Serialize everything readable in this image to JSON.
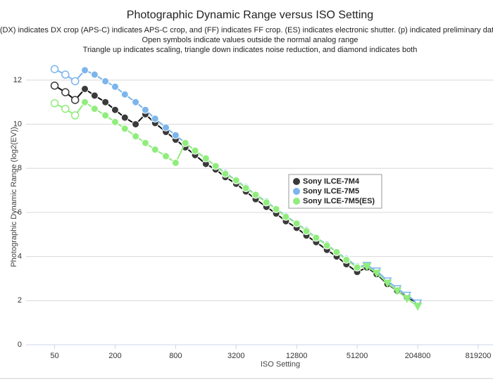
{
  "chart_data": {
    "type": "line",
    "title": "Photographic Dynamic Range versus ISO Setting",
    "subtitle": [
      "(DX) indicates DX crop (APS-C) indicates APS-C crop, and (FF) indicates FF crop. (ES) indicates electronic shutter. (p) indicated preliminary data.",
      "Open symbols indicate values outside the normal analog range",
      "Triangle up indicates scaling, triangle down indicates noise reduction, and diamond indicates both"
    ],
    "x_label": "ISO Setting",
    "y_label": "Photographic Dynamic Range (log2(EV))",
    "x_scale": "log",
    "xlim": [
      26,
      1150000
    ],
    "xticks": [
      50,
      200,
      800,
      3200,
      12800,
      51200,
      204800,
      819200
    ],
    "ylim": [
      0,
      13.4
    ],
    "yticks": [
      0,
      2,
      4,
      6,
      8,
      10,
      12
    ],
    "grid": true,
    "legend_position": "center",
    "x": [
      50,
      64,
      80,
      100,
      125,
      160,
      200,
      250,
      320,
      400,
      500,
      640,
      800,
      1000,
      1250,
      1600,
      2000,
      2500,
      3200,
      4000,
      5000,
      6400,
      8000,
      10000,
      12800,
      16000,
      20000,
      25600,
      32000,
      40000,
      51200,
      64000,
      80000,
      102400,
      128000,
      160000,
      204800
    ],
    "series": [
      {
        "name": "Sony ILCE-7M4",
        "color": "#3a3a3a",
        "line_color": "#111111",
        "values": [
          11.75,
          11.45,
          11.1,
          11.6,
          11.3,
          11.0,
          10.65,
          10.3,
          10.0,
          10.45,
          10.05,
          9.65,
          9.3,
          8.95,
          8.6,
          8.2,
          7.95,
          7.6,
          7.3,
          6.95,
          6.6,
          6.25,
          5.95,
          5.6,
          5.3,
          4.95,
          4.65,
          4.3,
          4.0,
          3.65,
          3.3,
          3.5,
          3.2,
          2.75,
          2.45,
          2.15,
          1.9
        ],
        "markers": [
          "open-circle",
          "open-circle",
          "open-circle",
          "circle",
          "circle",
          "circle",
          "circle",
          "circle",
          "circle",
          "circle",
          "circle",
          "circle",
          "circle",
          "circle",
          "circle",
          "circle",
          "circle",
          "circle",
          "circle",
          "circle",
          "circle",
          "circle",
          "circle",
          "circle",
          "circle",
          "circle",
          "circle",
          "circle",
          "circle",
          "circle",
          "circle",
          "circle",
          "circle",
          "circle",
          "circle",
          "circle",
          "circle"
        ]
      },
      {
        "name": "Sony ILCE-7M5",
        "color": "#7cb5ec",
        "line_color": "#7cb5ec",
        "values": [
          12.5,
          12.25,
          11.95,
          12.45,
          12.25,
          11.95,
          11.7,
          11.35,
          11.0,
          10.65,
          10.25,
          9.85,
          9.5,
          9.15,
          8.8,
          8.45,
          8.1,
          7.8,
          7.45,
          7.15,
          6.8,
          6.5,
          6.15,
          5.85,
          5.5,
          5.2,
          4.85,
          4.55,
          4.2,
          3.9,
          3.55,
          3.6,
          3.35,
          2.9,
          2.55,
          2.25,
          1.9
        ],
        "markers": [
          "open-circle",
          "open-circle",
          "open-circle",
          "circle",
          "circle",
          "circle",
          "circle",
          "circle",
          "circle",
          "circle",
          "circle",
          "circle",
          "circle",
          "circle",
          "circle",
          "circle",
          "circle",
          "circle",
          "circle",
          "circle",
          "circle",
          "circle",
          "circle",
          "circle",
          "circle",
          "circle",
          "circle",
          "circle",
          "circle",
          "circle",
          "circle",
          "open-triangle-down",
          "open-triangle-down",
          "open-triangle-down",
          "open-triangle-down",
          "open-triangle-down",
          "open-triangle-down"
        ]
      },
      {
        "name": "Sony ILCE-7M5(ES)",
        "color": "#90ed7d",
        "line_color": "#90ed7d",
        "values": [
          10.95,
          10.7,
          10.4,
          11.0,
          10.7,
          10.4,
          10.1,
          9.8,
          9.45,
          9.15,
          8.85,
          8.55,
          8.25,
          9.15,
          8.8,
          8.45,
          8.1,
          7.75,
          7.45,
          7.1,
          6.8,
          6.45,
          6.15,
          5.8,
          5.5,
          5.15,
          4.85,
          4.5,
          4.2,
          3.85,
          3.5,
          3.55,
          3.25,
          2.8,
          2.45,
          2.1,
          1.75
        ],
        "markers": [
          "open-circle",
          "open-circle",
          "open-circle",
          "circle",
          "circle",
          "circle",
          "circle",
          "circle",
          "circle",
          "circle",
          "circle",
          "circle",
          "circle",
          "circle",
          "circle",
          "circle",
          "circle",
          "circle",
          "circle",
          "circle",
          "circle",
          "circle",
          "circle",
          "circle",
          "circle",
          "circle",
          "circle",
          "circle",
          "circle",
          "circle",
          "circle",
          "triangle-down",
          "triangle-down",
          "triangle-down",
          "triangle-down",
          "triangle-down",
          "triangle-down"
        ]
      }
    ]
  }
}
